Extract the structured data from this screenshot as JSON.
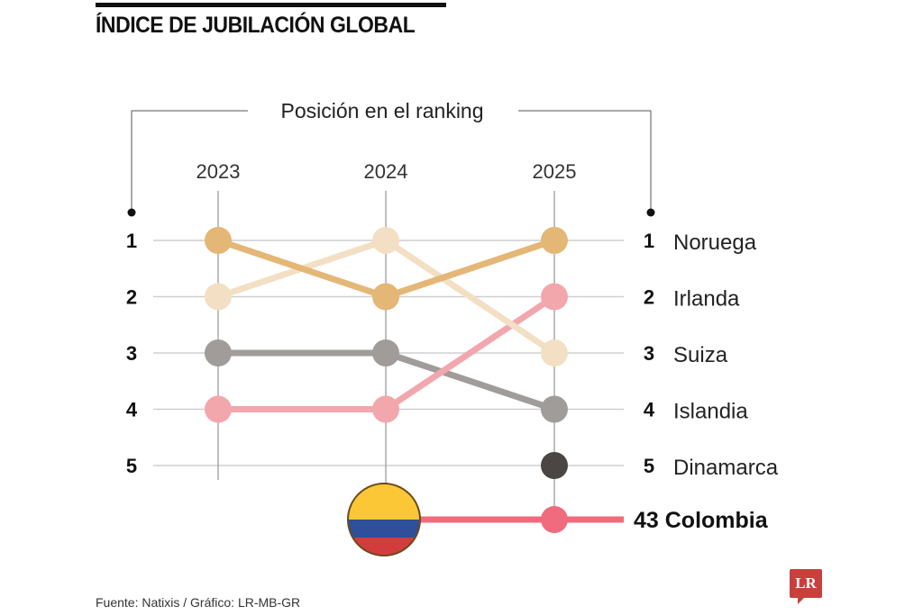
{
  "header": {
    "title": "ÍNDICE DE JUBILACIÓN GLOBAL"
  },
  "chart_data": {
    "type": "line",
    "title": "ÍNDICE DE JUBILACIÓN GLOBAL",
    "subtitle": "Posición en el ranking",
    "x": [
      "2023",
      "2024",
      "2025"
    ],
    "y_ticks": [
      "1",
      "2",
      "3",
      "4",
      "5"
    ],
    "ylim": [
      1,
      5
    ],
    "y_inverted": true,
    "grid": true,
    "series": [
      {
        "name": "Noruega",
        "values": [
          1,
          2,
          1
        ],
        "color": "#e4b777",
        "final_rank": "1"
      },
      {
        "name": "Irlanda",
        "values": [
          4,
          4,
          2
        ],
        "color": "#f2a7ad",
        "final_rank": "2"
      },
      {
        "name": "Suiza",
        "values": [
          2,
          1,
          3
        ],
        "color": "#f3dfc3",
        "final_rank": "3"
      },
      {
        "name": "Islandia",
        "values": [
          3,
          3,
          4
        ],
        "color": "#a09c99",
        "final_rank": "4"
      },
      {
        "name": "Dinamarca",
        "values": [
          null,
          null,
          5
        ],
        "color": "#4b4543",
        "final_rank": "5"
      }
    ],
    "highlight": {
      "name": "Colombia",
      "rank": "43",
      "year": "2025",
      "color": "#ef6b7d",
      "flag_colors": [
        "#fcc737",
        "#2f4f9a",
        "#d23c3c"
      ]
    }
  },
  "footer": {
    "source": "Fuente: Natixis / Gráfico: LR-MB-GR",
    "logo": "LR"
  }
}
